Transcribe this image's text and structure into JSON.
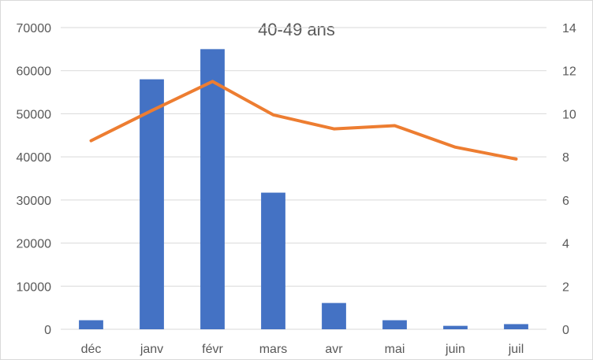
{
  "chart_data": {
    "type": "bar",
    "title": "40-49 ans",
    "xlabel": "",
    "ylabel": "",
    "categories": [
      "déc",
      "janv",
      "févr",
      "mars",
      "avr",
      "mai",
      "juin",
      "juil"
    ],
    "series": [
      {
        "type": "bar",
        "axis": "left",
        "color": "#4472c4",
        "values": [
          2100,
          58000,
          65000,
          31700,
          6100,
          2100,
          800,
          1200
        ]
      },
      {
        "type": "line",
        "axis": "right",
        "color": "#ed7d31",
        "values": [
          8.75,
          10.15,
          11.5,
          9.95,
          9.3,
          9.45,
          8.45,
          7.9
        ]
      }
    ],
    "ylim": [
      0,
      70000
    ],
    "y_ticks": [
      "0",
      "10000",
      "20000",
      "30000",
      "40000",
      "50000",
      "60000",
      "70000"
    ],
    "y2lim": [
      0,
      14
    ],
    "y2_ticks": [
      "0",
      "2",
      "4",
      "6",
      "8",
      "10",
      "12",
      "14"
    ],
    "grid": true,
    "legend": "none"
  }
}
